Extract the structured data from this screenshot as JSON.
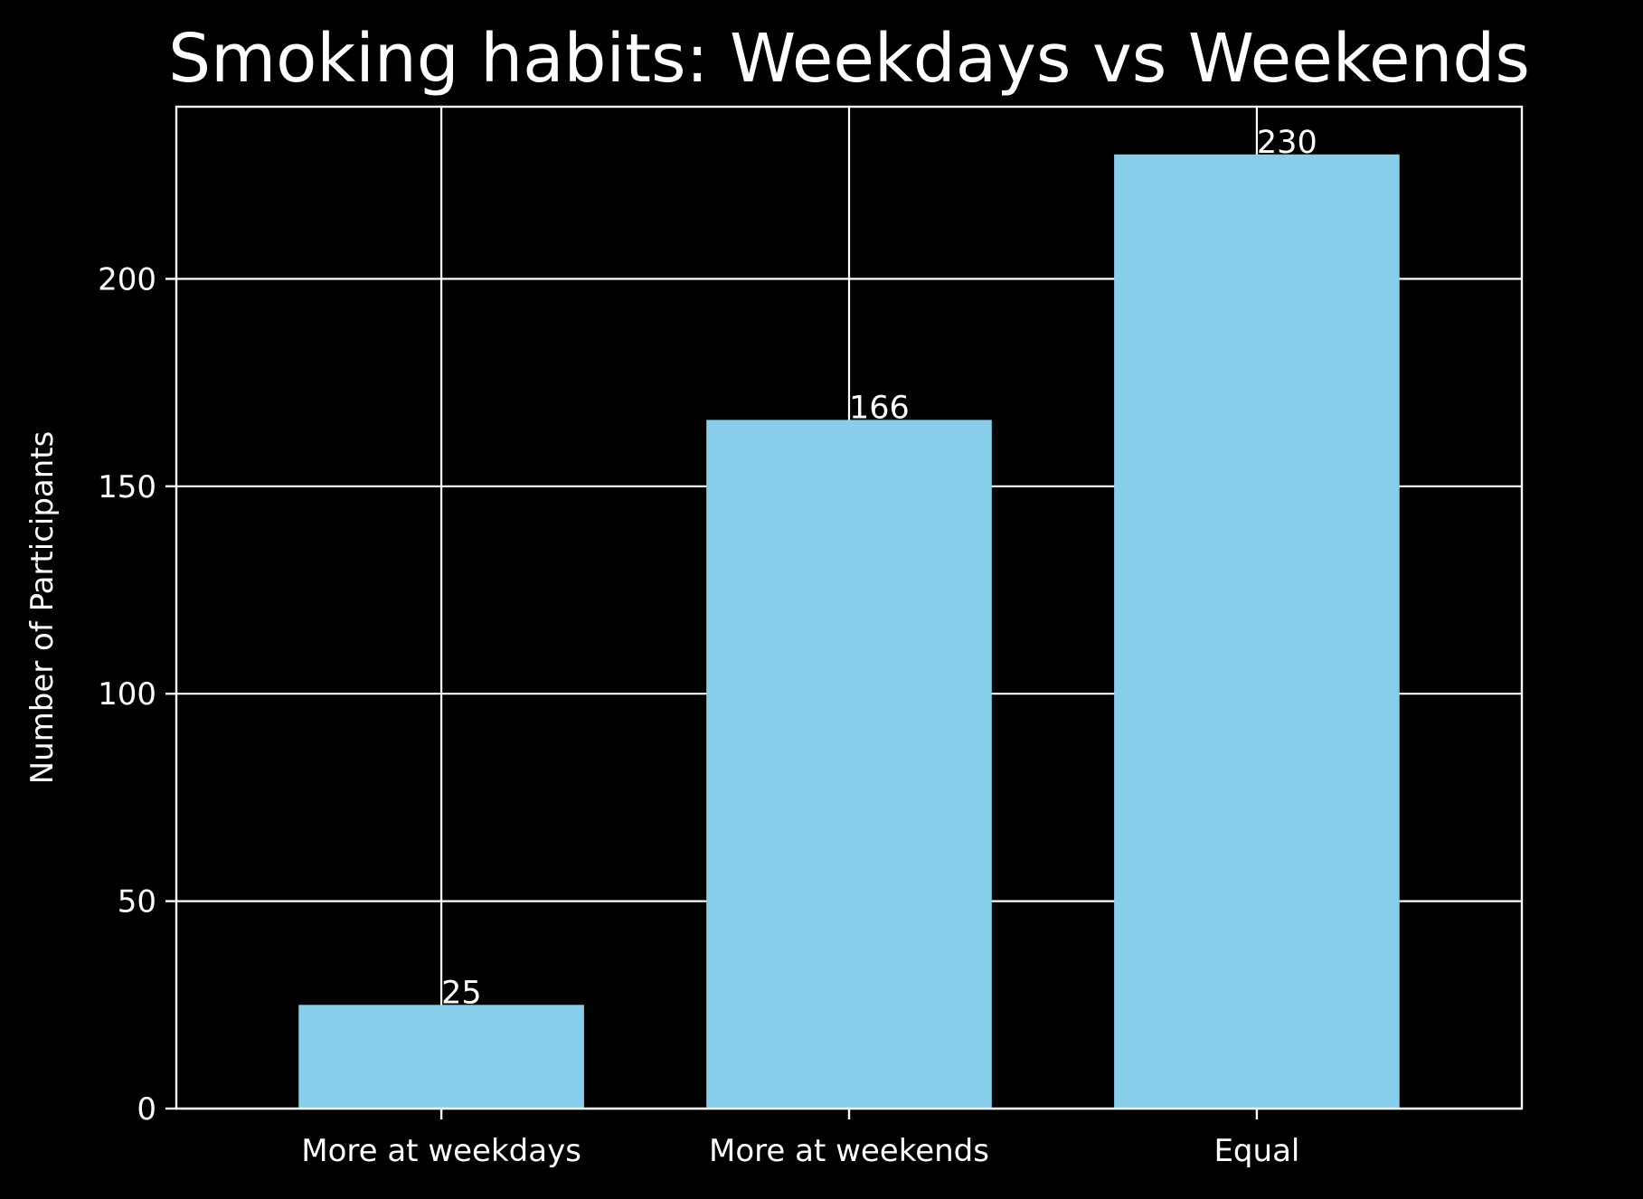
{
  "chart_data": {
    "type": "bar",
    "title": "Smoking habits: Weekdays vs Weekends",
    "xlabel": "",
    "ylabel": "Number of Participants",
    "categories": [
      "More at weekdays",
      "More at weekends",
      "Equal"
    ],
    "values": [
      25,
      166,
      230
    ],
    "data_labels": [
      "25",
      "166",
      "230"
    ],
    "ylim": [
      0,
      241.5
    ],
    "yticks": [
      0,
      50,
      100,
      150,
      200
    ],
    "ytick_labels": [
      "0",
      "50",
      "100",
      "150",
      "200"
    ],
    "grid": true,
    "colors": {
      "background": "#000000",
      "bar": "#87ceeb",
      "text": "#ffffff",
      "grid": "#ffffff"
    }
  }
}
